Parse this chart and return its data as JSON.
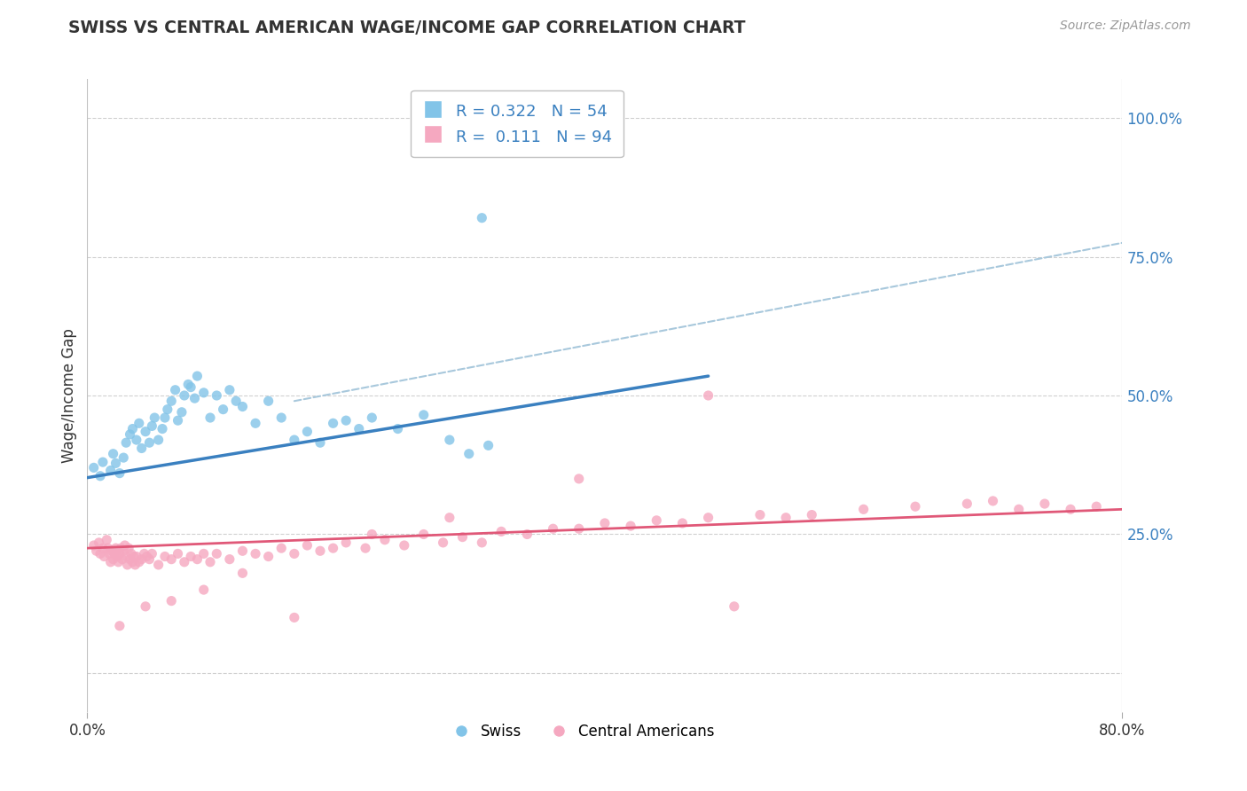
{
  "title": "SWISS VS CENTRAL AMERICAN WAGE/INCOME GAP CORRELATION CHART",
  "source": "Source: ZipAtlas.com",
  "ylabel": "Wage/Income Gap",
  "xlim": [
    0.0,
    0.8
  ],
  "ylim": [
    -0.07,
    1.07
  ],
  "xticks": [
    0.0,
    0.8
  ],
  "xticklabels": [
    "0.0%",
    "80.0%"
  ],
  "yticks": [
    0.0,
    0.25,
    0.5,
    0.75,
    1.0
  ],
  "yticklabels_right": [
    "",
    "25.0%",
    "50.0%",
    "75.0%",
    "100.0%"
  ],
  "swiss_color": "#82c4e8",
  "ca_color": "#f5a8c0",
  "swiss_line_color": "#3a80c0",
  "ca_line_color": "#e05878",
  "dashed_line_color": "#a8c8dc",
  "swiss_R": "0.322",
  "swiss_N": "54",
  "ca_R": "0.111",
  "ca_N": "94",
  "legend_swiss": "Swiss",
  "legend_ca": "Central Americans",
  "background_color": "#ffffff",
  "grid_color": "#d0d0d0",
  "text_color_blue": "#3a80c0",
  "text_color_dark": "#333333",
  "swiss_line_x0": 0.0,
  "swiss_line_y0": 0.352,
  "swiss_line_x1": 0.48,
  "swiss_line_y1": 0.535,
  "ca_line_x0": 0.0,
  "ca_line_y0": 0.225,
  "ca_line_x1": 0.8,
  "ca_line_y1": 0.295,
  "dash_line_x0": 0.16,
  "dash_line_y0": 0.49,
  "dash_line_x1": 0.8,
  "dash_line_y1": 0.775,
  "swiss_x": [
    0.005,
    0.01,
    0.012,
    0.018,
    0.02,
    0.022,
    0.025,
    0.028,
    0.03,
    0.033,
    0.035,
    0.038,
    0.04,
    0.042,
    0.045,
    0.048,
    0.05,
    0.052,
    0.055,
    0.058,
    0.06,
    0.062,
    0.065,
    0.068,
    0.07,
    0.073,
    0.075,
    0.078,
    0.08,
    0.083,
    0.085,
    0.09,
    0.095,
    0.1,
    0.105,
    0.11,
    0.115,
    0.12,
    0.13,
    0.14,
    0.15,
    0.16,
    0.17,
    0.18,
    0.19,
    0.2,
    0.21,
    0.22,
    0.24,
    0.26,
    0.28,
    0.295,
    0.305,
    0.31
  ],
  "swiss_y": [
    0.37,
    0.355,
    0.38,
    0.365,
    0.395,
    0.378,
    0.36,
    0.388,
    0.415,
    0.43,
    0.44,
    0.42,
    0.45,
    0.405,
    0.435,
    0.415,
    0.445,
    0.46,
    0.42,
    0.44,
    0.46,
    0.475,
    0.49,
    0.51,
    0.455,
    0.47,
    0.5,
    0.52,
    0.515,
    0.495,
    0.535,
    0.505,
    0.46,
    0.5,
    0.475,
    0.51,
    0.49,
    0.48,
    0.45,
    0.49,
    0.46,
    0.42,
    0.435,
    0.415,
    0.45,
    0.455,
    0.44,
    0.46,
    0.44,
    0.465,
    0.42,
    0.395,
    0.82,
    0.41
  ],
  "ca_x": [
    0.005,
    0.007,
    0.009,
    0.01,
    0.012,
    0.013,
    0.015,
    0.016,
    0.017,
    0.018,
    0.019,
    0.02,
    0.021,
    0.022,
    0.023,
    0.024,
    0.025,
    0.026,
    0.027,
    0.028,
    0.029,
    0.03,
    0.031,
    0.032,
    0.033,
    0.034,
    0.035,
    0.036,
    0.037,
    0.038,
    0.04,
    0.042,
    0.044,
    0.046,
    0.048,
    0.05,
    0.055,
    0.06,
    0.065,
    0.07,
    0.075,
    0.08,
    0.085,
    0.09,
    0.095,
    0.1,
    0.11,
    0.12,
    0.13,
    0.14,
    0.15,
    0.16,
    0.17,
    0.18,
    0.19,
    0.2,
    0.215,
    0.23,
    0.245,
    0.26,
    0.275,
    0.29,
    0.305,
    0.32,
    0.34,
    0.36,
    0.38,
    0.4,
    0.42,
    0.44,
    0.46,
    0.48,
    0.5,
    0.52,
    0.54,
    0.56,
    0.6,
    0.64,
    0.68,
    0.7,
    0.72,
    0.74,
    0.76,
    0.78,
    0.48,
    0.38,
    0.28,
    0.22,
    0.16,
    0.12,
    0.09,
    0.065,
    0.045,
    0.025
  ],
  "ca_y": [
    0.23,
    0.22,
    0.235,
    0.215,
    0.225,
    0.21,
    0.24,
    0.225,
    0.215,
    0.2,
    0.22,
    0.205,
    0.215,
    0.225,
    0.21,
    0.2,
    0.215,
    0.225,
    0.205,
    0.22,
    0.23,
    0.21,
    0.195,
    0.225,
    0.205,
    0.215,
    0.2,
    0.21,
    0.195,
    0.21,
    0.2,
    0.205,
    0.215,
    0.21,
    0.205,
    0.215,
    0.195,
    0.21,
    0.205,
    0.215,
    0.2,
    0.21,
    0.205,
    0.215,
    0.2,
    0.215,
    0.205,
    0.22,
    0.215,
    0.21,
    0.225,
    0.215,
    0.23,
    0.22,
    0.225,
    0.235,
    0.225,
    0.24,
    0.23,
    0.25,
    0.235,
    0.245,
    0.235,
    0.255,
    0.25,
    0.26,
    0.26,
    0.27,
    0.265,
    0.275,
    0.27,
    0.28,
    0.12,
    0.285,
    0.28,
    0.285,
    0.295,
    0.3,
    0.305,
    0.31,
    0.295,
    0.305,
    0.295,
    0.3,
    0.5,
    0.35,
    0.28,
    0.25,
    0.1,
    0.18,
    0.15,
    0.13,
    0.12,
    0.085
  ]
}
